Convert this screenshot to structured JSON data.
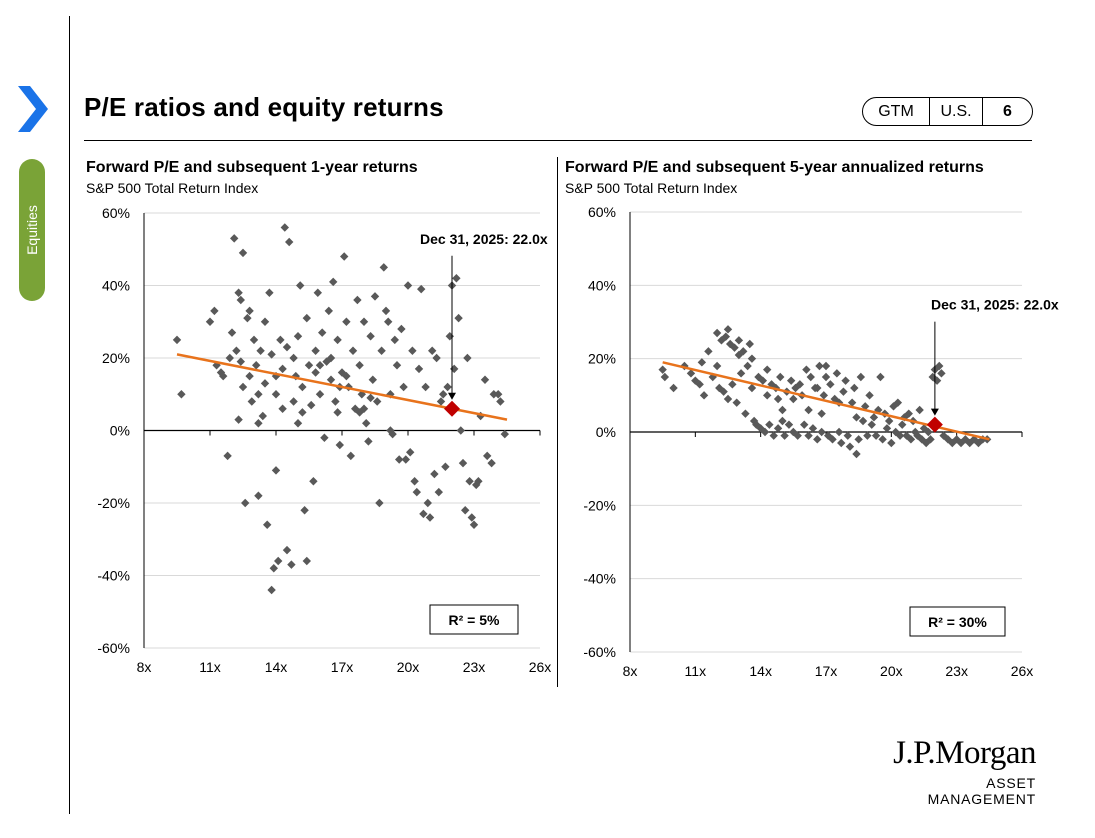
{
  "page": {
    "title": "P/E ratios and equity returns",
    "side_tab": "Equities",
    "badge": [
      "GTM",
      "U.S.",
      "6"
    ],
    "logo": {
      "name": "J.P.Morgan",
      "sub": "ASSET MANAGEMENT"
    }
  },
  "colors": {
    "points": "#595959",
    "trend": "#e8731c",
    "highlight": "#c00000",
    "accent": "#1a73e8",
    "tab": "#7aa337"
  },
  "charts": [
    {
      "title": "Forward P/E and subsequent 1-year returns",
      "subtitle": "S&P 500 Total Return Index",
      "annotation": "Dec 31, 2025:  22.0x",
      "r2": "R²  = 5%"
    },
    {
      "title": "Forward P/E and subsequent 5-year annualized returns",
      "subtitle": "S&P 500 Total Return Index",
      "annotation": "Dec 31, 2025:  22.0x",
      "r2": "R²  = 30%"
    }
  ],
  "chart_data": [
    {
      "type": "scatter",
      "title": "Forward P/E and subsequent 1-year returns",
      "subtitle": "S&P 500 Total Return Index",
      "xlim": [
        8,
        26
      ],
      "ylim": [
        -60,
        60
      ],
      "xticks": [
        8,
        11,
        14,
        17,
        20,
        23,
        26
      ],
      "xtick_labels": [
        "8x",
        "11x",
        "14x",
        "17x",
        "20x",
        "23x",
        "26x"
      ],
      "yticks": [
        -60,
        -40,
        -20,
        0,
        20,
        40,
        60
      ],
      "ytick_labels": [
        "-60%",
        "-40%",
        "-20%",
        "0%",
        "20%",
        "40%",
        "60%"
      ],
      "trendline": {
        "x": [
          9.5,
          24.5
        ],
        "y": [
          21,
          3
        ]
      },
      "highlight": {
        "x": 22.0,
        "y": 6,
        "label": "Dec 31, 2025:  22.0x"
      },
      "r_squared": "R²  = 5%",
      "points": [
        [
          9.5,
          25
        ],
        [
          9.7,
          10
        ],
        [
          11,
          30
        ],
        [
          11.2,
          33
        ],
        [
          11.3,
          18
        ],
        [
          11.5,
          16
        ],
        [
          11.6,
          15
        ],
        [
          11.8,
          -7
        ],
        [
          11.9,
          20
        ],
        [
          12,
          27
        ],
        [
          12.1,
          53
        ],
        [
          12.2,
          22
        ],
        [
          12.3,
          38
        ],
        [
          12.4,
          36
        ],
        [
          12.4,
          19
        ],
        [
          12.5,
          49
        ],
        [
          12.5,
          12
        ],
        [
          12.6,
          -20
        ],
        [
          12.7,
          31
        ],
        [
          12.8,
          33
        ],
        [
          12.9,
          8
        ],
        [
          13,
          25
        ],
        [
          13.1,
          18
        ],
        [
          13.2,
          10
        ],
        [
          13.2,
          -18
        ],
        [
          13.3,
          22
        ],
        [
          13.4,
          4
        ],
        [
          13.5,
          30
        ],
        [
          13.6,
          -26
        ],
        [
          13.7,
          38
        ],
        [
          13.8,
          21
        ],
        [
          13.9,
          -38
        ],
        [
          14,
          15
        ],
        [
          14,
          -11
        ],
        [
          14.1,
          -36
        ],
        [
          14.2,
          25
        ],
        [
          14.3,
          17
        ],
        [
          14.4,
          56
        ],
        [
          14.5,
          -33
        ],
        [
          14.5,
          23
        ],
        [
          14.6,
          52
        ],
        [
          14.7,
          -37
        ],
        [
          14.8,
          8
        ],
        [
          14.9,
          15
        ],
        [
          15,
          26
        ],
        [
          15.1,
          40
        ],
        [
          15.2,
          12
        ],
        [
          15.3,
          -22
        ],
        [
          15.4,
          -36
        ],
        [
          15.4,
          31
        ],
        [
          15.5,
          18
        ],
        [
          15.6,
          7
        ],
        [
          15.7,
          -14
        ],
        [
          15.8,
          22
        ],
        [
          15.9,
          38
        ],
        [
          16,
          10
        ],
        [
          16.1,
          27
        ],
        [
          16.2,
          -2
        ],
        [
          16.3,
          19
        ],
        [
          16.4,
          33
        ],
        [
          16.5,
          14
        ],
        [
          16.6,
          41
        ],
        [
          16.7,
          8
        ],
        [
          16.8,
          25
        ],
        [
          16.9,
          -4
        ],
        [
          17,
          16
        ],
        [
          17.1,
          48
        ],
        [
          17.2,
          30
        ],
        [
          17.3,
          12
        ],
        [
          17.4,
          -7
        ],
        [
          17.5,
          22
        ],
        [
          17.6,
          6
        ],
        [
          17.7,
          36
        ],
        [
          17.8,
          18
        ],
        [
          17.9,
          10
        ],
        [
          18,
          30
        ],
        [
          18.1,
          2
        ],
        [
          18.2,
          -3
        ],
        [
          18.3,
          26
        ],
        [
          18.4,
          14
        ],
        [
          18.5,
          37
        ],
        [
          18.6,
          8
        ],
        [
          18.7,
          -20
        ],
        [
          18.8,
          22
        ],
        [
          18.9,
          45
        ],
        [
          19,
          33
        ],
        [
          19.1,
          30
        ],
        [
          19.2,
          10
        ],
        [
          19.3,
          -1
        ],
        [
          19.4,
          25
        ],
        [
          19.5,
          18
        ],
        [
          19.6,
          -8
        ],
        [
          19.7,
          28
        ],
        [
          19.8,
          12
        ],
        [
          19.9,
          -8
        ],
        [
          20,
          40
        ],
        [
          20.1,
          -6
        ],
        [
          20.2,
          22
        ],
        [
          20.3,
          -14
        ],
        [
          20.4,
          -17
        ],
        [
          20.5,
          17
        ],
        [
          20.6,
          39
        ],
        [
          20.7,
          -23
        ],
        [
          20.8,
          12
        ],
        [
          20.9,
          -20
        ],
        [
          21,
          -24
        ],
        [
          21.1,
          22
        ],
        [
          21.2,
          -12
        ],
        [
          21.3,
          20
        ],
        [
          21.4,
          -17
        ],
        [
          21.5,
          8
        ],
        [
          21.6,
          10
        ],
        [
          21.7,
          -10
        ],
        [
          21.8,
          12
        ],
        [
          21.9,
          26
        ],
        [
          22,
          40
        ],
        [
          22.1,
          17
        ],
        [
          22.2,
          42
        ],
        [
          22.3,
          31
        ],
        [
          22.4,
          0
        ],
        [
          22.5,
          -9
        ],
        [
          22.6,
          -22
        ],
        [
          22.7,
          20
        ],
        [
          22.8,
          -14
        ],
        [
          22.9,
          -24
        ],
        [
          23,
          -26
        ],
        [
          23.1,
          -15
        ],
        [
          23.2,
          -14
        ],
        [
          23.3,
          4
        ],
        [
          23.5,
          14
        ],
        [
          23.6,
          -7
        ],
        [
          23.8,
          -9
        ],
        [
          23.9,
          10
        ],
        [
          24.1,
          10
        ],
        [
          24.2,
          8
        ],
        [
          24.4,
          -1
        ],
        [
          13.5,
          13
        ],
        [
          14.8,
          20
        ],
        [
          15.2,
          5
        ],
        [
          16.0,
          18
        ],
        [
          16.5,
          20
        ],
        [
          17.2,
          15
        ],
        [
          17.8,
          5
        ],
        [
          12.8,
          15
        ],
        [
          13.2,
          2
        ],
        [
          14.3,
          6
        ],
        [
          15.8,
          16
        ],
        [
          16.9,
          12
        ],
        [
          18.3,
          9
        ],
        [
          19.2,
          0
        ],
        [
          13.8,
          -44
        ],
        [
          12.3,
          3
        ],
        [
          16.8,
          5
        ],
        [
          15.0,
          2
        ],
        [
          14.0,
          10
        ],
        [
          18.0,
          6
        ]
      ]
    },
    {
      "type": "scatter",
      "title": "Forward P/E and subsequent 5-year annualized returns",
      "subtitle": "S&P 500 Total Return Index",
      "xlim": [
        8,
        26
      ],
      "ylim": [
        -60,
        60
      ],
      "xticks": [
        8,
        11,
        14,
        17,
        20,
        23,
        26
      ],
      "xtick_labels": [
        "8x",
        "11x",
        "14x",
        "17x",
        "20x",
        "23x",
        "26x"
      ],
      "yticks": [
        -60,
        -40,
        -20,
        0,
        20,
        40,
        60
      ],
      "ytick_labels": [
        "-60%",
        "-40%",
        "-20%",
        "0%",
        "20%",
        "40%",
        "60%"
      ],
      "trendline": {
        "x": [
          9.5,
          24.5
        ],
        "y": [
          19,
          -2
        ]
      },
      "highlight": {
        "x": 22.0,
        "y": 2,
        "label": "Dec 31, 2025:  22.0x"
      },
      "r_squared": "R²  = 30%",
      "points": [
        [
          9.5,
          17
        ],
        [
          9.6,
          15
        ],
        [
          10,
          12
        ],
        [
          10.5,
          18
        ],
        [
          10.8,
          16
        ],
        [
          11,
          14
        ],
        [
          11.2,
          13
        ],
        [
          11.4,
          10
        ],
        [
          11.6,
          22
        ],
        [
          11.8,
          15
        ],
        [
          12,
          27
        ],
        [
          12.1,
          12
        ],
        [
          12.2,
          25
        ],
        [
          12.3,
          11
        ],
        [
          12.4,
          26
        ],
        [
          12.5,
          9
        ],
        [
          12.6,
          24
        ],
        [
          12.7,
          13
        ],
        [
          12.8,
          23
        ],
        [
          12.9,
          8
        ],
        [
          13,
          25
        ],
        [
          13.1,
          16
        ],
        [
          13.2,
          22
        ],
        [
          13.3,
          5
        ],
        [
          13.4,
          18
        ],
        [
          13.5,
          24
        ],
        [
          13.6,
          12
        ],
        [
          13.7,
          3
        ],
        [
          13.8,
          2
        ],
        [
          13.9,
          15
        ],
        [
          14,
          1
        ],
        [
          14.1,
          14
        ],
        [
          14.2,
          0
        ],
        [
          14.3,
          10
        ],
        [
          14.4,
          2
        ],
        [
          14.5,
          13
        ],
        [
          14.6,
          -1
        ],
        [
          14.7,
          12
        ],
        [
          14.8,
          1
        ],
        [
          14.9,
          15
        ],
        [
          15,
          3
        ],
        [
          15.1,
          -1
        ],
        [
          15.2,
          11
        ],
        [
          15.3,
          2
        ],
        [
          15.4,
          14
        ],
        [
          15.5,
          0
        ],
        [
          15.6,
          12
        ],
        [
          15.7,
          -1
        ],
        [
          15.8,
          13
        ],
        [
          15.9,
          10
        ],
        [
          16,
          2
        ],
        [
          16.1,
          17
        ],
        [
          16.2,
          -1
        ],
        [
          16.3,
          15
        ],
        [
          16.4,
          1
        ],
        [
          16.5,
          12
        ],
        [
          16.6,
          -2
        ],
        [
          16.7,
          18
        ],
        [
          16.8,
          0
        ],
        [
          16.9,
          10
        ],
        [
          17,
          15
        ],
        [
          17.1,
          -1
        ],
        [
          17.2,
          13
        ],
        [
          17.3,
          -2
        ],
        [
          17.4,
          9
        ],
        [
          17.5,
          16
        ],
        [
          17.6,
          0
        ],
        [
          17.7,
          -3
        ],
        [
          17.8,
          11
        ],
        [
          17.9,
          14
        ],
        [
          18,
          -1
        ],
        [
          18.1,
          -4
        ],
        [
          18.2,
          8
        ],
        [
          18.3,
          12
        ],
        [
          18.4,
          -6
        ],
        [
          18.5,
          -2
        ],
        [
          18.6,
          15
        ],
        [
          18.7,
          3
        ],
        [
          18.8,
          7
        ],
        [
          18.9,
          -1
        ],
        [
          19,
          10
        ],
        [
          19.1,
          2
        ],
        [
          19.2,
          4
        ],
        [
          19.3,
          -1
        ],
        [
          19.4,
          6
        ],
        [
          19.5,
          15
        ],
        [
          19.6,
          -2
        ],
        [
          19.7,
          5
        ],
        [
          19.8,
          1
        ],
        [
          19.9,
          3
        ],
        [
          20,
          -3
        ],
        [
          20.1,
          7
        ],
        [
          20.2,
          0
        ],
        [
          20.3,
          8
        ],
        [
          20.4,
          -1
        ],
        [
          20.5,
          2
        ],
        [
          20.6,
          4
        ],
        [
          20.7,
          -1
        ],
        [
          20.8,
          5
        ],
        [
          20.9,
          -2
        ],
        [
          21,
          3
        ],
        [
          21.1,
          0
        ],
        [
          21.2,
          -1
        ],
        [
          21.3,
          6
        ],
        [
          21.4,
          -2
        ],
        [
          21.5,
          1
        ],
        [
          21.6,
          -3
        ],
        [
          21.7,
          0
        ],
        [
          21.8,
          -2
        ],
        [
          21.9,
          15
        ],
        [
          22,
          17
        ],
        [
          22.1,
          14
        ],
        [
          22.2,
          18
        ],
        [
          22.3,
          16
        ],
        [
          22.4,
          -1
        ],
        [
          22.6,
          -2
        ],
        [
          22.8,
          -3
        ],
        [
          23,
          -2
        ],
        [
          23.2,
          -3
        ],
        [
          23.4,
          -2
        ],
        [
          23.6,
          -3
        ],
        [
          23.8,
          -2
        ],
        [
          24,
          -3
        ],
        [
          24.2,
          -2
        ],
        [
          24.4,
          -2
        ],
        [
          12.5,
          28
        ],
        [
          13.0,
          21
        ],
        [
          13.6,
          20
        ],
        [
          14.3,
          17
        ],
        [
          15.0,
          6
        ],
        [
          15.5,
          9
        ],
        [
          16.2,
          6
        ],
        [
          16.8,
          5
        ],
        [
          17.6,
          8
        ],
        [
          18.4,
          4
        ],
        [
          12.0,
          18
        ],
        [
          11.3,
          19
        ],
        [
          14.8,
          9
        ],
        [
          16.6,
          12
        ],
        [
          17.0,
          18
        ]
      ]
    }
  ]
}
